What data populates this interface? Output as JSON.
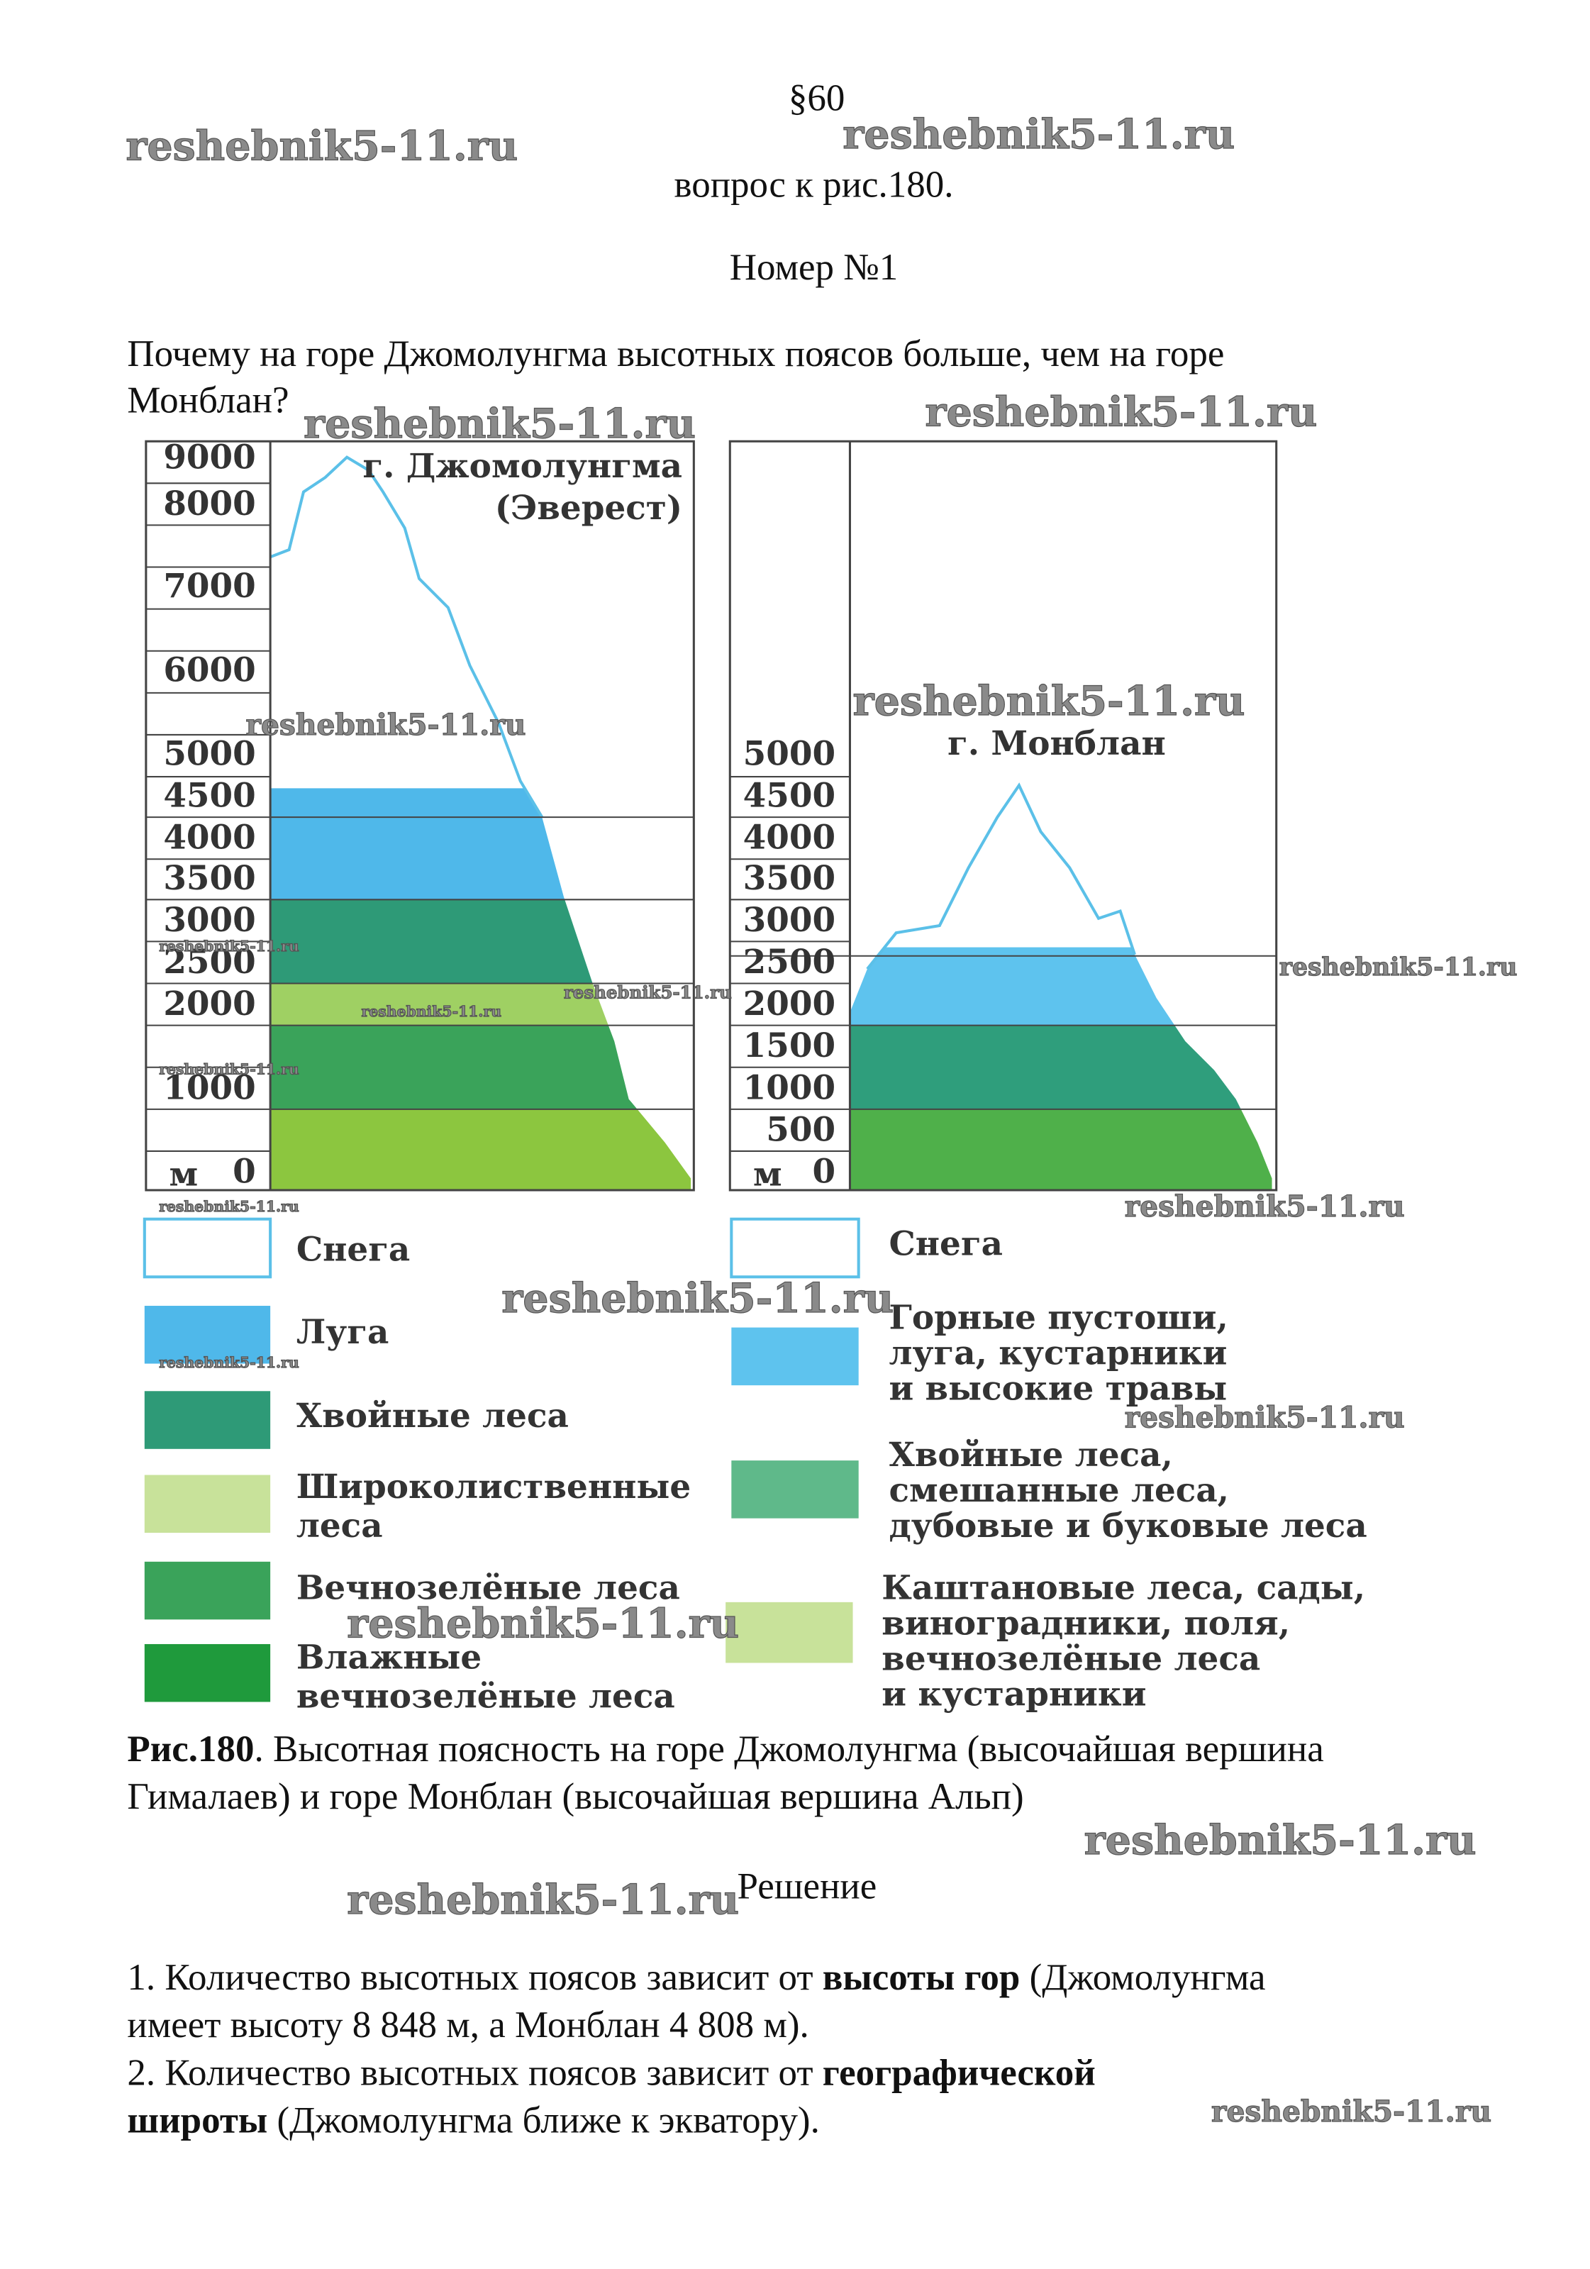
{
  "header": {
    "section": "§60",
    "subtitle": "вопрос к рис.180.",
    "number": "Номер №1"
  },
  "question": [
    "Почему на горе Джомолунгма высотных поясов больше, чем на горе",
    "Монблан?"
  ],
  "figure": {
    "left": {
      "title": [
        "г. Джомолунгма",
        "(Эверест)"
      ],
      "unit": "м",
      "axis_labels": [
        "9000",
        "8000",
        "7000",
        "6000",
        "5000",
        "4500",
        "4000",
        "3500",
        "3000",
        "2500",
        "2000",
        "1000",
        "0"
      ],
      "legend": [
        [
          "Снега"
        ],
        [
          "Луга"
        ],
        [
          "Хвойные леса"
        ],
        [
          "Широколиственные",
          "леса"
        ],
        [
          "Вечнозелёные леса"
        ],
        [
          "Влажные",
          "вечнозелёные леса"
        ]
      ]
    },
    "right": {
      "title": [
        "г. Монблан"
      ],
      "unit": "м",
      "axis_labels": [
        "5000",
        "4500",
        "4000",
        "3500",
        "3000",
        "2500",
        "2000",
        "1500",
        "1000",
        "500",
        "0"
      ],
      "legend": [
        [
          "Снега"
        ],
        [
          "Горные пустоши,",
          "луга, кустарники",
          "и высокие травы"
        ],
        [
          "Хвойные леса,",
          "смешанные леса,",
          "дубовые и буковые леса"
        ],
        [
          "Каштановые леса, сады,",
          "виноградники, поля,",
          "вечнозелёные леса",
          "и кустарники"
        ]
      ]
    },
    "caption": {
      "label": "Рис.180",
      "lines": [
        ". Высотная поясность на горе Джомолунгма (высочайшая вершина",
        "Гималаев) и горе Монблан (высочайшая вершина Альп)"
      ]
    }
  },
  "solution": {
    "title": "Решение",
    "lines": [
      [
        {
          "text": "1. Количество высотных поясов зависит от "
        },
        {
          "text": "высоты гор",
          "bold": true
        },
        {
          "text": " (Джомолунгма"
        }
      ],
      [
        {
          "text": "имеет высоту 8 848 м, а Монблан 4 808 м)."
        }
      ],
      [
        {
          "text": "2. Количество высотных поясов зависит от "
        },
        {
          "text": "географической",
          "bold": true
        }
      ],
      [
        {
          "text": "широты",
          "bold": true
        },
        {
          "text": " (Джомолунгма ближе к экватору)."
        }
      ]
    ]
  },
  "watermarks": [
    "reshebnik5-11.ru",
    "reshebnik5-11.ru",
    "reshebnik5-11.ru",
    "reshebnik5-11.ru",
    "reshebnik5-11.ru",
    "reshebnik5-11.ru",
    "reshebnik5-11.ru",
    "reshebnik5-11.ru",
    "reshebnik5-11.ru",
    "reshebnik5-11.ru",
    "reshebnik5-11.ru",
    "reshebnik5-11.ru",
    "reshebnik5-11.ru",
    "reshebnik5-11.ru",
    "reshebnik5-11.ru",
    "reshebnik5-11.ru",
    "reshebnik5-11.ru",
    "reshebnik5-11.ru",
    "reshebnik5-11.ru",
    "reshebnik5-11.ru"
  ]
}
